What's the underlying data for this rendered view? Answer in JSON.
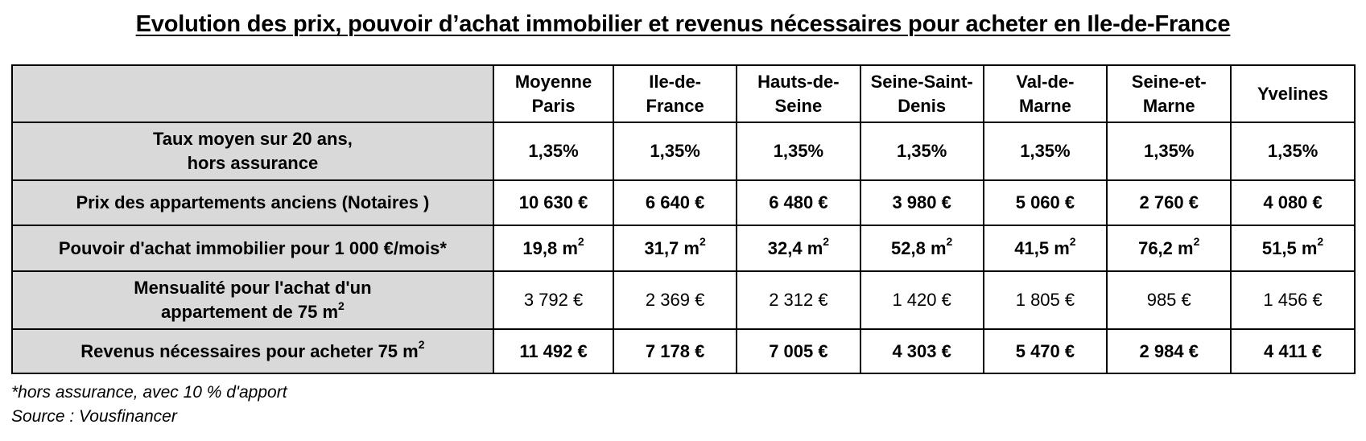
{
  "title": "Evolution des prix, pouvoir d’achat immobilier et revenus nécessaires pour acheter en Ile-de-France",
  "table": {
    "columns": [
      {
        "line1": "Moyenne",
        "line2": "Paris"
      },
      {
        "line1": "Ile-de-",
        "line2": "France"
      },
      {
        "line1": "Hauts-de-",
        "line2": "Seine"
      },
      {
        "line1": "Seine-Saint-",
        "line2": "Denis"
      },
      {
        "line1": "Val-de-",
        "line2": "Marne"
      },
      {
        "line1": "Seine-et-",
        "line2": "Marne"
      },
      {
        "line1": "Yvelines",
        "line2": ""
      }
    ],
    "rows": {
      "taux": {
        "label_line1": "Taux moyen sur 20 ans,",
        "label_line2": "hors assurance",
        "values": [
          "1,35%",
          "1,35%",
          "1,35%",
          "1,35%",
          "1,35%",
          "1,35%",
          "1,35%"
        ]
      },
      "prix": {
        "label": "Prix des appartements anciens (Notaires )",
        "values": [
          "10 630 €",
          "6 640 €",
          "6 480 €",
          "3 980 €",
          "5 060 €",
          "2 760 €",
          "4 080 €"
        ]
      },
      "pouvoir": {
        "label": "Pouvoir d'achat immobilier pour 1 000 €/mois*",
        "unit": "m",
        "exponent": "2",
        "values": [
          "19,8",
          "31,7",
          "32,4",
          "52,8",
          "41,5",
          "76,2",
          "51,5"
        ]
      },
      "mensualite": {
        "label_line1": "Mensualité pour l'achat d'un",
        "label_line2": "appartement de 75 m",
        "label_exponent": "2",
        "values": [
          "3 792 €",
          "2 369 €",
          "2 312 €",
          "1 420 €",
          "1 805 €",
          "985 €",
          "1 456 €"
        ]
      },
      "revenus": {
        "label": "Revenus nécessaires pour acheter 75 m",
        "label_exponent": "2",
        "values": [
          "11 492 €",
          "7 178 €",
          "7 005 €",
          "4 303 €",
          "5 470 €",
          "2 984 €",
          "4 411 €"
        ]
      }
    }
  },
  "footnotes": {
    "note": "*hors assurance, avec 10 % d'apport",
    "source": "Source : Vousfinancer"
  }
}
